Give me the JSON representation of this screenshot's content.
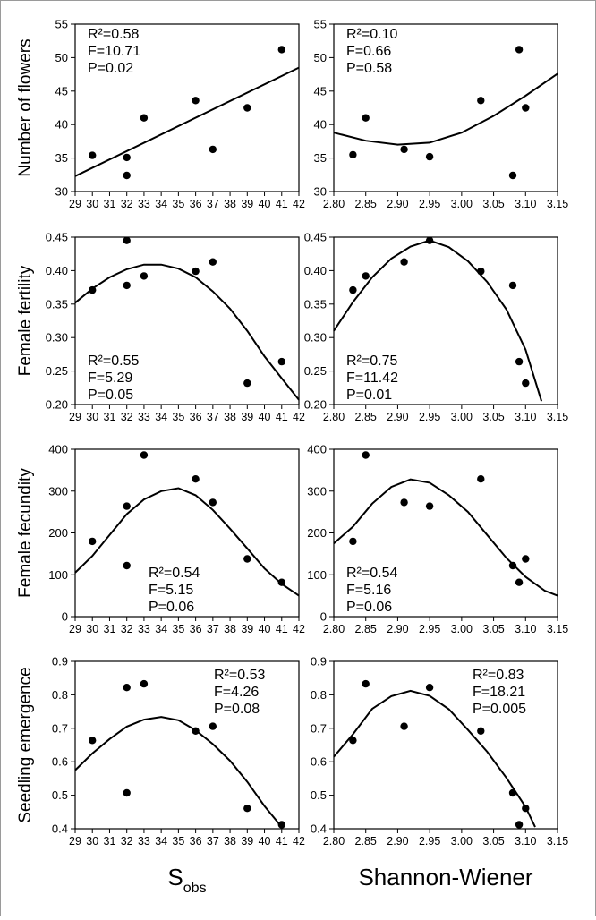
{
  "figure": {
    "left_xlabel": "S",
    "left_xlabel_sub": "obs",
    "right_xlabel": "Shannon-Wiener"
  },
  "chart_data": [
    {
      "id": "flowers-sobs",
      "type": "scatter",
      "ylabel": "Number of flowers",
      "xlim": [
        29,
        42
      ],
      "ylim": [
        30,
        55
      ],
      "xticks": [
        "29",
        "30",
        "31",
        "32",
        "33",
        "34",
        "35",
        "36",
        "37",
        "38",
        "39",
        "40",
        "41",
        "42"
      ],
      "yticks": [
        "30",
        "35",
        "40",
        "45",
        "50",
        "55"
      ],
      "points": [
        [
          30,
          35.4
        ],
        [
          32,
          35.1
        ],
        [
          32,
          32.4
        ],
        [
          33,
          41.0
        ],
        [
          36,
          43.6
        ],
        [
          37,
          36.3
        ],
        [
          39,
          42.5
        ],
        [
          41,
          51.2
        ]
      ],
      "fit": [
        [
          29,
          32.3
        ],
        [
          42,
          48.5
        ]
      ],
      "stats": [
        "R²=0.58",
        "F=10.71",
        "P=0.02"
      ],
      "stats_pos": "top-left"
    },
    {
      "id": "flowers-shannon",
      "type": "scatter",
      "ylabel": "",
      "xlim": [
        2.8,
        3.15
      ],
      "ylim": [
        30,
        55
      ],
      "xticks": [
        "2.80",
        "2.85",
        "2.90",
        "2.95",
        "3.00",
        "3.05",
        "3.10",
        "3.15"
      ],
      "yticks": [
        "30",
        "35",
        "40",
        "45",
        "50",
        "55"
      ],
      "points": [
        [
          2.83,
          35.5
        ],
        [
          2.85,
          41.0
        ],
        [
          2.91,
          36.3
        ],
        [
          2.95,
          35.2
        ],
        [
          3.03,
          43.6
        ],
        [
          3.08,
          32.4
        ],
        [
          3.09,
          51.2
        ],
        [
          3.1,
          42.5
        ]
      ],
      "fit": [
        [
          2.8,
          38.8
        ],
        [
          2.85,
          37.6
        ],
        [
          2.9,
          37.0
        ],
        [
          2.95,
          37.3
        ],
        [
          3.0,
          38.8
        ],
        [
          3.05,
          41.3
        ],
        [
          3.1,
          44.3
        ],
        [
          3.15,
          47.6
        ]
      ],
      "stats": [
        "R²=0.10",
        "F=0.66",
        "P=0.58"
      ],
      "stats_pos": "top-left"
    },
    {
      "id": "fertility-sobs",
      "type": "scatter",
      "ylabel": "Female fertility",
      "xlim": [
        29,
        42
      ],
      "ylim": [
        0.2,
        0.45
      ],
      "xticks": [
        "29",
        "30",
        "31",
        "32",
        "33",
        "34",
        "35",
        "36",
        "37",
        "38",
        "39",
        "40",
        "41",
        "42"
      ],
      "yticks": [
        "0.20",
        "0.25",
        "0.30",
        "0.35",
        "0.40",
        "0.45"
      ],
      "points": [
        [
          30,
          0.371
        ],
        [
          32,
          0.445
        ],
        [
          32,
          0.378
        ],
        [
          33,
          0.392
        ],
        [
          36,
          0.399
        ],
        [
          37,
          0.413
        ],
        [
          39,
          0.232
        ],
        [
          41,
          0.264
        ]
      ],
      "fit": [
        [
          29,
          0.352
        ],
        [
          30,
          0.373
        ],
        [
          31,
          0.39
        ],
        [
          32,
          0.402
        ],
        [
          33,
          0.409
        ],
        [
          34,
          0.409
        ],
        [
          35,
          0.403
        ],
        [
          36,
          0.39
        ],
        [
          37,
          0.369
        ],
        [
          38,
          0.343
        ],
        [
          39,
          0.31
        ],
        [
          40,
          0.272
        ],
        [
          41,
          0.239
        ],
        [
          42,
          0.207
        ]
      ],
      "stats": [
        "R²=0.55",
        "F=5.29",
        "P=0.05"
      ],
      "stats_pos": "bottom-left"
    },
    {
      "id": "fertility-shannon",
      "type": "scatter",
      "ylabel": "",
      "xlim": [
        2.8,
        3.15
      ],
      "ylim": [
        0.2,
        0.45
      ],
      "xticks": [
        "2.80",
        "2.85",
        "2.90",
        "2.95",
        "3.00",
        "3.05",
        "3.10",
        "3.15"
      ],
      "yticks": [
        "0.20",
        "0.25",
        "0.30",
        "0.35",
        "0.40",
        "0.45"
      ],
      "points": [
        [
          2.83,
          0.371
        ],
        [
          2.85,
          0.392
        ],
        [
          2.91,
          0.413
        ],
        [
          2.95,
          0.445
        ],
        [
          3.03,
          0.399
        ],
        [
          3.08,
          0.378
        ],
        [
          3.09,
          0.264
        ],
        [
          3.1,
          0.232
        ]
      ],
      "fit": [
        [
          2.8,
          0.31
        ],
        [
          2.83,
          0.353
        ],
        [
          2.86,
          0.39
        ],
        [
          2.89,
          0.418
        ],
        [
          2.92,
          0.436
        ],
        [
          2.95,
          0.445
        ],
        [
          2.98,
          0.435
        ],
        [
          3.01,
          0.414
        ],
        [
          3.04,
          0.383
        ],
        [
          3.07,
          0.342
        ],
        [
          3.1,
          0.282
        ],
        [
          3.125,
          0.205
        ]
      ],
      "stats": [
        "R²=0.75",
        "F=11.42",
        "P=0.01"
      ],
      "stats_pos": "bottom-left"
    },
    {
      "id": "fecundity-sobs",
      "type": "scatter",
      "ylabel": "Female fecundity",
      "xlim": [
        29,
        42
      ],
      "ylim": [
        0,
        400
      ],
      "xticks": [
        "29",
        "30",
        "31",
        "32",
        "33",
        "34",
        "35",
        "36",
        "37",
        "38",
        "39",
        "40",
        "41",
        "42"
      ],
      "yticks": [
        "0",
        "100",
        "200",
        "300",
        "400"
      ],
      "points": [
        [
          30,
          180
        ],
        [
          32,
          264
        ],
        [
          32,
          122
        ],
        [
          33,
          386
        ],
        [
          36,
          329
        ],
        [
          37,
          273
        ],
        [
          39,
          138
        ],
        [
          41,
          82
        ]
      ],
      "fit": [
        [
          29,
          105
        ],
        [
          30,
          145
        ],
        [
          31,
          195
        ],
        [
          32,
          245
        ],
        [
          33,
          280
        ],
        [
          34,
          300
        ],
        [
          35,
          307
        ],
        [
          36,
          290
        ],
        [
          37,
          255
        ],
        [
          38,
          210
        ],
        [
          39,
          163
        ],
        [
          40,
          115
        ],
        [
          41,
          78
        ],
        [
          42,
          50
        ]
      ],
      "stats": [
        "R²=0.54",
        "F=5.15",
        "P=0.06"
      ],
      "stats_pos": "bottom-center"
    },
    {
      "id": "fecundity-shannon",
      "type": "scatter",
      "ylabel": "",
      "xlim": [
        2.8,
        3.15
      ],
      "ylim": [
        0,
        400
      ],
      "xticks": [
        "2.80",
        "2.85",
        "2.90",
        "2.95",
        "3.00",
        "3.05",
        "3.10",
        "3.15"
      ],
      "yticks": [
        "0",
        "100",
        "200",
        "300",
        "400"
      ],
      "points": [
        [
          2.83,
          180
        ],
        [
          2.85,
          386
        ],
        [
          2.91,
          273
        ],
        [
          2.95,
          264
        ],
        [
          3.03,
          329
        ],
        [
          3.08,
          122
        ],
        [
          3.09,
          82
        ],
        [
          3.1,
          138
        ]
      ],
      "fit": [
        [
          2.8,
          175
        ],
        [
          2.83,
          215
        ],
        [
          2.86,
          270
        ],
        [
          2.89,
          310
        ],
        [
          2.92,
          328
        ],
        [
          2.95,
          320
        ],
        [
          2.98,
          290
        ],
        [
          3.01,
          250
        ],
        [
          3.04,
          195
        ],
        [
          3.07,
          140
        ],
        [
          3.1,
          95
        ],
        [
          3.13,
          62
        ],
        [
          3.15,
          50
        ]
      ],
      "stats": [
        "R²=0.54",
        "F=5.16",
        "P=0.06"
      ],
      "stats_pos": "bottom-left"
    },
    {
      "id": "emergence-sobs",
      "type": "scatter",
      "ylabel": "Seedling emergence",
      "xlim": [
        29,
        42
      ],
      "ylim": [
        0.4,
        0.9
      ],
      "xticks": [
        "29",
        "30",
        "31",
        "32",
        "33",
        "34",
        "35",
        "36",
        "37",
        "38",
        "39",
        "40",
        "41",
        "42"
      ],
      "yticks": [
        "0.4",
        "0.5",
        "0.6",
        "0.7",
        "0.8",
        "0.9"
      ],
      "points": [
        [
          30,
          0.664
        ],
        [
          32,
          0.822
        ],
        [
          32,
          0.507
        ],
        [
          33,
          0.833
        ],
        [
          36,
          0.692
        ],
        [
          37,
          0.706
        ],
        [
          39,
          0.461
        ],
        [
          41,
          0.412
        ]
      ],
      "fit": [
        [
          29,
          0.575
        ],
        [
          30,
          0.625
        ],
        [
          31,
          0.668
        ],
        [
          32,
          0.705
        ],
        [
          33,
          0.726
        ],
        [
          34,
          0.734
        ],
        [
          35,
          0.724
        ],
        [
          36,
          0.694
        ],
        [
          37,
          0.653
        ],
        [
          38,
          0.603
        ],
        [
          39,
          0.54
        ],
        [
          40,
          0.468
        ],
        [
          41,
          0.405
        ]
      ],
      "stats": [
        "R²=0.53",
        "F=4.26",
        "P=0.08"
      ],
      "stats_pos": "top-right"
    },
    {
      "id": "emergence-shannon",
      "type": "scatter",
      "ylabel": "",
      "xlim": [
        2.8,
        3.15
      ],
      "ylim": [
        0.4,
        0.9
      ],
      "xticks": [
        "2.80",
        "2.85",
        "2.90",
        "2.95",
        "3.00",
        "3.05",
        "3.10",
        "3.15"
      ],
      "yticks": [
        "0.4",
        "0.5",
        "0.6",
        "0.7",
        "0.8",
        "0.9"
      ],
      "points": [
        [
          2.83,
          0.664
        ],
        [
          2.85,
          0.833
        ],
        [
          2.91,
          0.706
        ],
        [
          2.95,
          0.822
        ],
        [
          3.03,
          0.692
        ],
        [
          3.08,
          0.507
        ],
        [
          3.09,
          0.412
        ],
        [
          3.1,
          0.461
        ]
      ],
      "fit": [
        [
          2.8,
          0.615
        ],
        [
          2.83,
          0.682
        ],
        [
          2.86,
          0.758
        ],
        [
          2.89,
          0.796
        ],
        [
          2.92,
          0.812
        ],
        [
          2.95,
          0.797
        ],
        [
          2.98,
          0.757
        ],
        [
          3.01,
          0.695
        ],
        [
          3.04,
          0.63
        ],
        [
          3.07,
          0.552
        ],
        [
          3.1,
          0.465
        ],
        [
          3.115,
          0.405
        ]
      ],
      "stats": [
        "R²=0.83",
        "F=18.21",
        "P=0.005"
      ],
      "stats_pos": "top-right"
    }
  ]
}
